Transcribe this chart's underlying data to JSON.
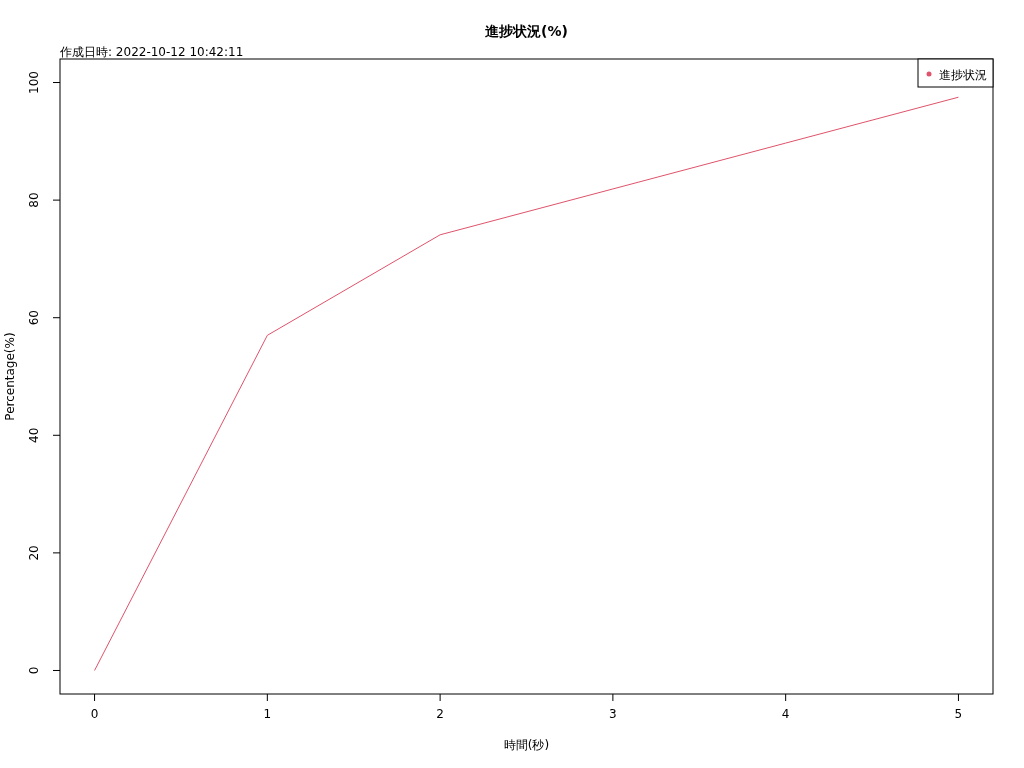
{
  "chart_data": {
    "type": "line",
    "title": "進捗状況(%)",
    "xlabel": "時間(秒)",
    "ylabel": "Percentage(%)",
    "annotations": [
      "作成日時: 2022-10-12 10:42:11"
    ],
    "x": [
      0,
      1,
      2,
      3,
      4,
      5
    ],
    "series": [
      {
        "name": "進捗状況",
        "color": "#df536b",
        "values": [
          0,
          57,
          74.1,
          81.9,
          89.7,
          97.5
        ]
      }
    ],
    "xlim": [
      -0.2,
      5.2
    ],
    "ylim": [
      -4,
      104
    ],
    "xticks": [
      0,
      1,
      2,
      3,
      4,
      5
    ],
    "yticks": [
      0,
      20,
      40,
      60,
      80,
      100
    ],
    "legend": "top right",
    "marker": "none",
    "line_style": "solid",
    "grid": false
  }
}
